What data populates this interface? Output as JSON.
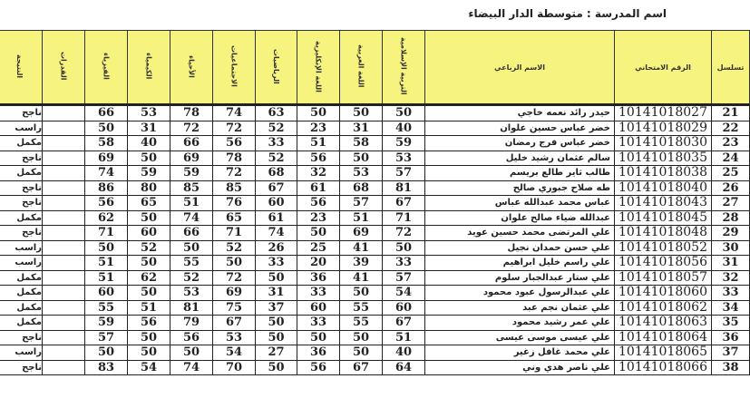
{
  "school_label": "اسم المدرسة : متوسطة الدار البيضاء",
  "headers": {
    "seq": "تسلسل",
    "exam_no": "الرقم الامتحاني",
    "name": "الاسم الرباعي",
    "islamic": "التربية الإسلامية",
    "arabic": "اللغة العربية",
    "english": "اللغة الإنكليزية",
    "math": "الرياضيات",
    "social": "الاجتماعيات",
    "biology": "الأحياء",
    "chemistry": "الكيمياء",
    "physics": "الفيزياء",
    "extra": "القدرات",
    "result": "النتيجة"
  },
  "colors": {
    "header_bg": "#f6f47e"
  },
  "rows": [
    {
      "seq": "21",
      "exam": "10141018027",
      "name": "حيدر رائد نعمه خاجي",
      "marks": [
        "50",
        "50",
        "50",
        "63",
        "74",
        "78",
        "53",
        "66"
      ],
      "extra": "",
      "result": "ناجح"
    },
    {
      "seq": "22",
      "exam": "10141018029",
      "name": "خضر عباس حسين علوان",
      "marks": [
        "40",
        "31",
        "23",
        "52",
        "72",
        "72",
        "31",
        "50"
      ],
      "extra": "",
      "result": "راسب"
    },
    {
      "seq": "23",
      "exam": "10141018030",
      "name": "خضر عباس فرج رمضان",
      "marks": [
        "59",
        "58",
        "51",
        "33",
        "56",
        "66",
        "40",
        "58"
      ],
      "extra": "",
      "result": "مكمل"
    },
    {
      "seq": "24",
      "exam": "10141018035",
      "name": "سالم عثمان رشيد خليل",
      "marks": [
        "53",
        "50",
        "56",
        "52",
        "78",
        "69",
        "50",
        "69"
      ],
      "extra": "",
      "result": "ناجح"
    },
    {
      "seq": "25",
      "exam": "10141018038",
      "name": "طالب ثاير طالع بريسم",
      "marks": [
        "57",
        "53",
        "32",
        "68",
        "72",
        "59",
        "59",
        "74"
      ],
      "extra": "",
      "result": "مكمل"
    },
    {
      "seq": "26",
      "exam": "10141018040",
      "name": "طه صلاح جبوري صالح",
      "marks": [
        "81",
        "68",
        "61",
        "67",
        "85",
        "85",
        "80",
        "86"
      ],
      "extra": "",
      "result": "ناجح"
    },
    {
      "seq": "27",
      "exam": "10141018043",
      "name": "عباس محمد عبدالله عباس",
      "marks": [
        "67",
        "57",
        "56",
        "60",
        "76",
        "51",
        "65",
        "56"
      ],
      "extra": "",
      "result": "ناجح"
    },
    {
      "seq": "28",
      "exam": "10141018045",
      "name": "عبدالله ضياء صالح علوان",
      "marks": [
        "71",
        "51",
        "23",
        "61",
        "65",
        "74",
        "50",
        "62"
      ],
      "extra": "",
      "result": "مكمل"
    },
    {
      "seq": "29",
      "exam": "10141018048",
      "name": "علي المرتضى محمد حسين عويد",
      "marks": [
        "72",
        "69",
        "50",
        "74",
        "71",
        "66",
        "60",
        "71"
      ],
      "extra": "",
      "result": "ناجح"
    },
    {
      "seq": "30",
      "exam": "10141018052",
      "name": "علي حسن حمدان نجيل",
      "marks": [
        "50",
        "41",
        "25",
        "26",
        "52",
        "50",
        "52",
        "50"
      ],
      "extra": "",
      "result": "راسب"
    },
    {
      "seq": "31",
      "exam": "10141018056",
      "name": "علي راسم خليل ابراهيم",
      "marks": [
        "33",
        "39",
        "20",
        "33",
        "50",
        "55",
        "50",
        "51"
      ],
      "extra": "",
      "result": "راسب"
    },
    {
      "seq": "32",
      "exam": "10141018057",
      "name": "علي ستار عبدالجبار سلوم",
      "marks": [
        "57",
        "41",
        "36",
        "50",
        "72",
        "52",
        "62",
        "51"
      ],
      "extra": "",
      "result": "مكمل"
    },
    {
      "seq": "33",
      "exam": "10141018060",
      "name": "علي عبدالرسول عبود محمود",
      "marks": [
        "54",
        "50",
        "33",
        "31",
        "69",
        "53",
        "50",
        "60"
      ],
      "extra": "",
      "result": "مكمل"
    },
    {
      "seq": "34",
      "exam": "10141018062",
      "name": "علي عثمان نجم عبد",
      "marks": [
        "60",
        "55",
        "60",
        "37",
        "75",
        "81",
        "51",
        "55"
      ],
      "extra": "",
      "result": "مكمل"
    },
    {
      "seq": "35",
      "exam": "10141018063",
      "name": "علي عمر رشيد محمود",
      "marks": [
        "67",
        "55",
        "33",
        "50",
        "67",
        "79",
        "56",
        "59"
      ],
      "extra": "",
      "result": "مكمل"
    },
    {
      "seq": "36",
      "exam": "10141018064",
      "name": "علي عيسى موسى عيسى",
      "marks": [
        "51",
        "50",
        "50",
        "50",
        "53",
        "56",
        "50",
        "57"
      ],
      "extra": "",
      "result": "ناجح"
    },
    {
      "seq": "37",
      "exam": "10141018065",
      "name": "علي محمد غافل زغير",
      "marks": [
        "40",
        "50",
        "36",
        "27",
        "54",
        "50",
        "50",
        "50"
      ],
      "extra": "",
      "result": "راسب"
    },
    {
      "seq": "38",
      "exam": "10141018066",
      "name": "علي ناصر هدي وني",
      "marks": [
        "64",
        "67",
        "56",
        "50",
        "70",
        "74",
        "54",
        "83"
      ],
      "extra": "",
      "result": "ناجح"
    }
  ]
}
